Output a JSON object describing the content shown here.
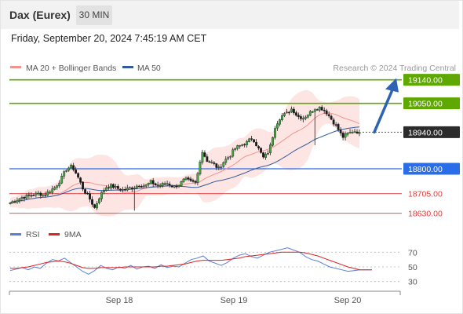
{
  "header": {
    "instrument": "Dax (Eurex)",
    "timeframe": "30 MIN",
    "datetime": "Friday, September 20, 2024 7:45:19 AM CET"
  },
  "legend": {
    "bollinger": {
      "label": "MA 20 + Bollinger Bands",
      "color": "#f4938d"
    },
    "ma50": {
      "label": "MA 50",
      "color": "#335a9c"
    },
    "credit": "Research © 2024 Trading Central"
  },
  "rsi_legend": {
    "rsi": {
      "label": "RSI",
      "color": "#5b7fd6"
    },
    "ma9": {
      "label": "9MA",
      "color": "#dd2222"
    }
  },
  "chart_data": [
    {
      "type": "candlestick",
      "title": "Dax (Eurex)",
      "ylim": [
        18590,
        19160
      ],
      "x_ticks": [
        "Sep 18",
        "Sep 19",
        "Sep 20"
      ],
      "levels": [
        {
          "value": 19140.0,
          "label": "19140.00",
          "style": "resistance",
          "color": "#5ea800"
        },
        {
          "value": 19050.0,
          "label": "19050.00",
          "style": "resistance",
          "color": "#5ea800"
        },
        {
          "value": 18940.0,
          "label": "18940.00",
          "style": "last",
          "color": "#2b2b2b"
        },
        {
          "value": 18800.0,
          "label": "18800.00",
          "style": "pivot",
          "color": "#2a6de8"
        },
        {
          "value": 18705.0,
          "label": "18705.00",
          "style": "support",
          "color": "#e03a3a"
        },
        {
          "value": 18630.0,
          "label": "18630.00",
          "style": "support",
          "color": "#e03a3a"
        }
      ],
      "forecast_arrow": {
        "from": 18940,
        "to": 19140,
        "color": "#2d62b4"
      },
      "ohlc_anchors": [
        18670,
        18680,
        18690,
        18695,
        18700,
        18705,
        18700,
        18715,
        18730,
        18760,
        18800,
        18810,
        18770,
        18720,
        18690,
        18650,
        18700,
        18730,
        18735,
        18725,
        18720,
        18725,
        18730,
        18740,
        18735,
        18750,
        18735,
        18740,
        18745,
        18730,
        18740,
        18760,
        18750,
        18745,
        18870,
        18830,
        18820,
        18800,
        18830,
        18850,
        18880,
        18890,
        18900,
        18920,
        18880,
        18840,
        18870,
        18960,
        19000,
        19010,
        19030,
        19000,
        18995,
        19010,
        19030,
        19035,
        19020,
        18990,
        18960,
        18920,
        18935,
        18945,
        18940
      ]
    },
    {
      "type": "line",
      "title": "RSI",
      "ylim": [
        20,
        80
      ],
      "y_ticks": [
        30,
        50,
        70
      ],
      "series": [
        {
          "name": "RSI",
          "color": "#5b7fd6",
          "values": [
            45,
            47,
            49,
            46,
            50,
            48,
            55,
            60,
            58,
            62,
            56,
            50,
            44,
            40,
            45,
            52,
            48,
            46,
            50,
            48,
            52,
            47,
            50,
            51,
            48,
            53,
            49,
            51,
            50,
            55,
            60,
            62,
            65,
            58,
            55,
            52,
            56,
            62,
            66,
            68,
            64,
            62,
            66,
            70,
            72,
            74,
            76,
            73,
            70,
            64,
            60,
            58,
            54,
            50,
            48,
            46,
            44,
            45,
            46,
            46,
            46
          ]
        },
        {
          "name": "9MA",
          "color": "#dd2222",
          "values": [
            48,
            48,
            49,
            50,
            52,
            54,
            56,
            57,
            58,
            57,
            55,
            52,
            49,
            48,
            48,
            49,
            49,
            49,
            49,
            50,
            50,
            50,
            50,
            50,
            50,
            51,
            51,
            52,
            53,
            54,
            56,
            58,
            59,
            59,
            59,
            59,
            60,
            61,
            62,
            64,
            65,
            66,
            67,
            68,
            69,
            70,
            70,
            70,
            70,
            69,
            67,
            65,
            62,
            59,
            56,
            53,
            50,
            48,
            46,
            46,
            46
          ]
        }
      ]
    }
  ]
}
